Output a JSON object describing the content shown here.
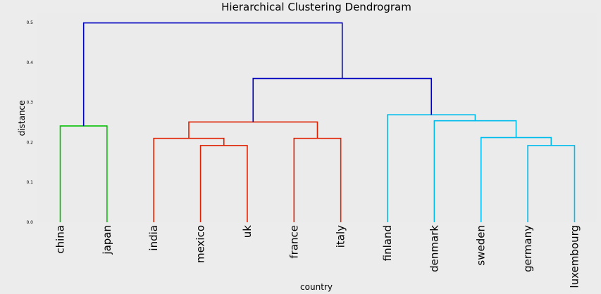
{
  "chart_data": {
    "type": "dendrogram",
    "title": "Hierarchical Clustering Dendrogram",
    "xlabel": "country",
    "ylabel": "distance",
    "ylim": [
      0,
      0.5
    ],
    "yticks": [
      "0.0",
      "0.1",
      "0.2",
      "0.3",
      "0.4",
      "0.5"
    ],
    "leaves": [
      "china",
      "japan",
      "india",
      "mexico",
      "uk",
      "france",
      "italy",
      "finland",
      "denmark",
      "sweden",
      "germany",
      "luxembourg"
    ],
    "colors": {
      "green_cluster": "#00c000",
      "red_cluster": "#e02000",
      "cyan_cluster": "#00bcec",
      "link": "#0000c0"
    },
    "merges": [
      {
        "left": "mexico",
        "right": "uk",
        "height": 0.192,
        "color": "red_cluster"
      },
      {
        "left": "germany",
        "right": "luxembourg",
        "height": 0.192,
        "color": "cyan_cluster"
      },
      {
        "left": "india",
        "right": "mexico+uk",
        "height": 0.21,
        "color": "red_cluster"
      },
      {
        "left": "france",
        "right": "italy",
        "height": 0.21,
        "color": "red_cluster"
      },
      {
        "left": "sweden",
        "right": "germany+luxembourg",
        "height": 0.212,
        "color": "cyan_cluster"
      },
      {
        "left": "china",
        "right": "japan",
        "height": 0.241,
        "color": "green_cluster"
      },
      {
        "left": "india+mexico+uk",
        "right": "france+italy",
        "height": 0.251,
        "color": "red_cluster"
      },
      {
        "left": "denmark",
        "right": "sweden+germany+luxembourg",
        "height": 0.254,
        "color": "cyan_cluster"
      },
      {
        "left": "finland",
        "right": "denmark+sweden+germany+luxembourg",
        "height": 0.269,
        "color": "cyan_cluster"
      },
      {
        "left": "india..italy",
        "right": "finland..luxembourg",
        "height": 0.36,
        "color": "link"
      },
      {
        "left": "china+japan",
        "right": "india..luxembourg",
        "height": 0.499,
        "color": "link"
      }
    ]
  }
}
